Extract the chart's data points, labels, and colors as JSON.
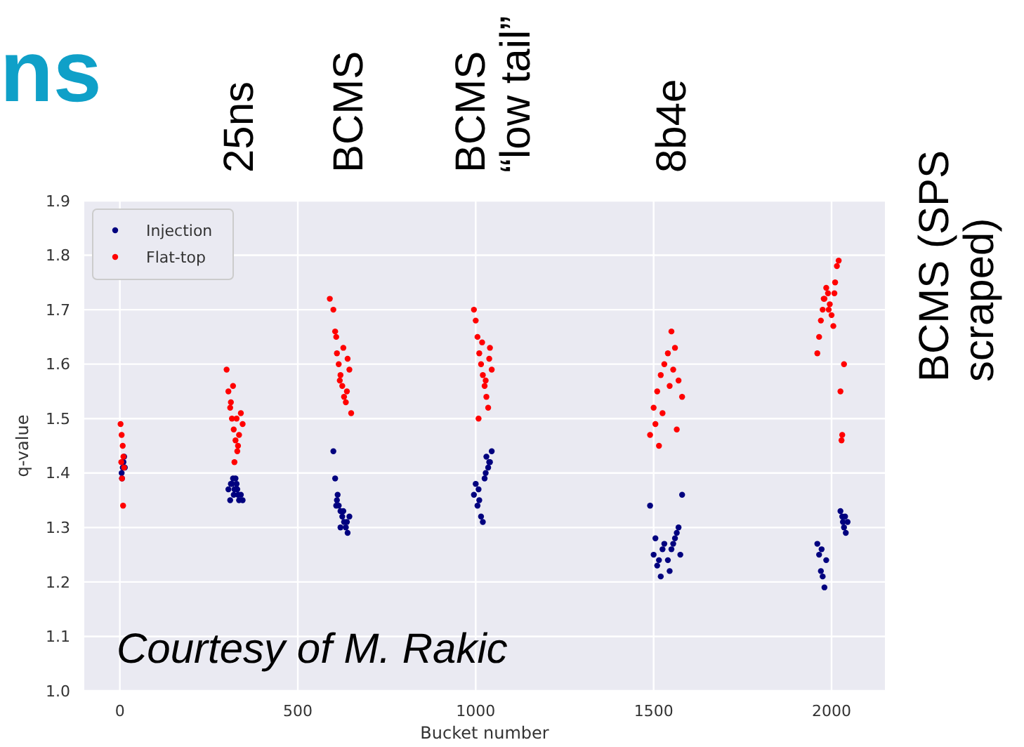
{
  "chart_data": {
    "type": "scatter",
    "title": "ns",
    "xlabel": "Bucket number",
    "ylabel": "q-value",
    "annotations": [
      "25ns",
      "BCMS",
      "BCMS\n“low tail”",
      "8b4e",
      "BCMS (SPS\nscraped)",
      "Courtesy of M. Rakic"
    ],
    "xlim": [
      -100,
      2150
    ],
    "xticks": [
      0,
      500,
      1000,
      1500,
      2000
    ],
    "ylim": [
      1.0,
      1.9
    ],
    "yticks": [
      {
        "value": 1.0,
        "label": "1.0"
      },
      1.1,
      1.2,
      1.3,
      1.4,
      1.5,
      1.6,
      1.7,
      1.8,
      1.9
    ],
    "grid": true,
    "legend": "top left",
    "marker": "circle",
    "series": [
      {
        "name": "Injection",
        "color": "#00007f",
        "x": [
          5,
          8,
          10,
          12,
          6,
          14,
          9,
          305,
          310,
          315,
          320,
          325,
          330,
          335,
          340,
          312,
          322,
          332,
          345,
          318,
          328,
          600,
          605,
          610,
          615,
          620,
          625,
          630,
          635,
          640,
          645,
          612,
          628,
          638,
          608,
          620,
          995,
          1000,
          1005,
          1010,
          1015,
          1020,
          1025,
          1030,
          1035,
          1040,
          1045,
          1008,
          1028,
          1038,
          1490,
          1500,
          1510,
          1520,
          1530,
          1540,
          1550,
          1560,
          1570,
          1580,
          1505,
          1525,
          1545,
          1565,
          1575,
          1515,
          1555,
          1960,
          1965,
          1970,
          1975,
          1980,
          1985,
          2025,
          2030,
          2035,
          2040,
          2045,
          1972,
          2032,
          2038
        ],
        "values": [
          1.4,
          1.41,
          1.42,
          1.43,
          1.39,
          1.41,
          1.42,
          1.37,
          1.35,
          1.38,
          1.36,
          1.39,
          1.37,
          1.35,
          1.36,
          1.38,
          1.37,
          1.36,
          1.35,
          1.39,
          1.38,
          1.44,
          1.39,
          1.35,
          1.34,
          1.33,
          1.32,
          1.31,
          1.3,
          1.29,
          1.32,
          1.36,
          1.33,
          1.31,
          1.34,
          1.3,
          1.36,
          1.38,
          1.34,
          1.35,
          1.32,
          1.31,
          1.39,
          1.43,
          1.41,
          1.42,
          1.44,
          1.37,
          1.4,
          1.42,
          1.34,
          1.25,
          1.23,
          1.21,
          1.27,
          1.24,
          1.26,
          1.28,
          1.3,
          1.36,
          1.28,
          1.26,
          1.22,
          1.29,
          1.25,
          1.24,
          1.27,
          1.27,
          1.25,
          1.22,
          1.21,
          1.19,
          1.24,
          1.33,
          1.32,
          1.3,
          1.29,
          1.31,
          1.26,
          1.31,
          1.32
        ]
      },
      {
        "name": "Flat-top",
        "color": "#ff0000",
        "x": [
          2,
          5,
          8,
          10,
          12,
          6,
          9,
          4,
          300,
          305,
          310,
          315,
          320,
          325,
          330,
          335,
          340,
          345,
          312,
          322,
          332,
          318,
          328,
          590,
          600,
          605,
          610,
          615,
          620,
          625,
          630,
          635,
          640,
          645,
          608,
          618,
          628,
          638,
          650,
          995,
          1000,
          1005,
          1010,
          1015,
          1020,
          1025,
          1030,
          1035,
          1040,
          1045,
          1008,
          1018,
          1028,
          1038,
          1490,
          1500,
          1510,
          1520,
          1530,
          1540,
          1550,
          1560,
          1570,
          1580,
          1505,
          1525,
          1545,
          1565,
          1515,
          1555,
          1960,
          1965,
          1970,
          1975,
          1980,
          1985,
          1990,
          1995,
          2000,
          2005,
          2010,
          2015,
          2020,
          2025,
          2030,
          1978,
          1992,
          2008,
          2035,
          2028
        ],
        "values": [
          1.49,
          1.47,
          1.45,
          1.43,
          1.41,
          1.39,
          1.34,
          1.42,
          1.59,
          1.55,
          1.52,
          1.5,
          1.48,
          1.46,
          1.44,
          1.47,
          1.51,
          1.49,
          1.53,
          1.42,
          1.45,
          1.56,
          1.5,
          1.72,
          1.7,
          1.66,
          1.62,
          1.6,
          1.58,
          1.56,
          1.54,
          1.53,
          1.61,
          1.59,
          1.65,
          1.57,
          1.63,
          1.55,
          1.51,
          1.7,
          1.68,
          1.65,
          1.62,
          1.6,
          1.58,
          1.56,
          1.54,
          1.52,
          1.63,
          1.59,
          1.5,
          1.64,
          1.57,
          1.61,
          1.47,
          1.52,
          1.55,
          1.58,
          1.6,
          1.62,
          1.66,
          1.63,
          1.57,
          1.54,
          1.49,
          1.51,
          1.56,
          1.48,
          1.45,
          1.59,
          1.62,
          1.65,
          1.68,
          1.7,
          1.72,
          1.74,
          1.73,
          1.71,
          1.69,
          1.67,
          1.75,
          1.78,
          1.79,
          1.55,
          1.47,
          1.72,
          1.7,
          1.73,
          1.6,
          1.46
        ]
      }
    ]
  }
}
